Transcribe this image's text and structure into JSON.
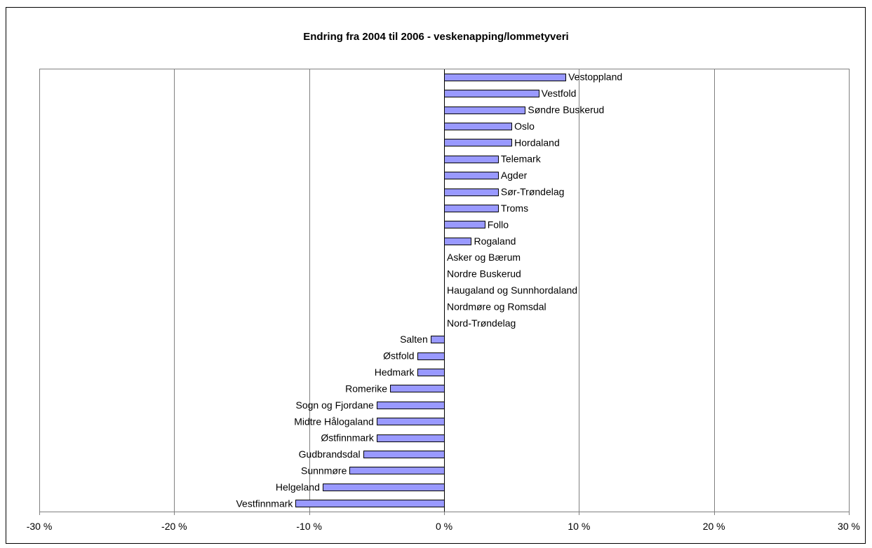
{
  "chart_data": {
    "type": "bar",
    "orientation": "horizontal",
    "title": "Endring fra 2004 til 2006 - veskenapping/lommetyveri",
    "xlabel": "",
    "ylabel": "",
    "xlim": [
      -30,
      30
    ],
    "x_ticks": [
      -30,
      -20,
      -10,
      0,
      10,
      20,
      30
    ],
    "x_tick_labels": [
      "-30 %",
      "-20 %",
      "-10 %",
      "0 %",
      "10 %",
      "20 %",
      "30 %"
    ],
    "grid": true,
    "legend": "none",
    "categories": [
      "Vestoppland",
      "Vestfold",
      "Søndre Buskerud",
      "Oslo",
      "Hordaland",
      "Telemark",
      "Agder",
      "Sør-Trøndelag",
      "Troms",
      "Follo",
      "Rogaland",
      "Asker og Bærum",
      "Nordre Buskerud",
      "Haugaland og Sunnhordaland",
      "Nordmøre og Romsdal",
      "Nord-Trøndelag",
      "Salten",
      "Østfold",
      "Hedmark",
      "Romerike",
      "Sogn og Fjordane",
      "Midtre Hålogaland",
      "Østfinnmark",
      "Gudbrandsdal",
      "Sunnmøre",
      "Helgeland",
      "Vestfinnmark"
    ],
    "values": [
      9,
      7,
      6,
      5,
      5,
      4,
      4,
      4,
      4,
      3,
      2,
      0,
      0,
      0,
      0,
      0,
      -1,
      -2,
      -2,
      -4,
      -5,
      -5,
      -5,
      -6,
      -7,
      -9,
      -11
    ],
    "bar_color": "#9999ff",
    "bar_border_color": "#000000",
    "grid_color": "#808080"
  }
}
